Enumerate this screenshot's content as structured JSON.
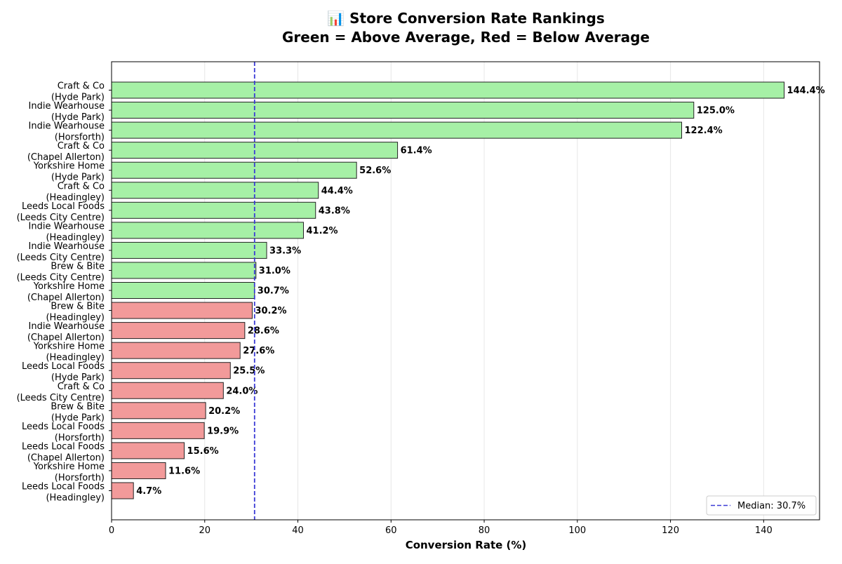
{
  "chart_data": {
    "type": "bar",
    "orientation": "horizontal",
    "title_line1": "📊 Store Conversion Rate Rankings",
    "title_line2": "Green = Above Average, Red = Below Average",
    "xlabel": "Conversion Rate (%)",
    "ylabel": "",
    "xlim": [
      0,
      152
    ],
    "xticks": [
      0,
      20,
      40,
      60,
      80,
      100,
      120,
      140
    ],
    "grid": "vertical",
    "legend_position": "bottom-right",
    "median": 30.7,
    "median_label": "Median: 30.7%",
    "colors": {
      "above": "#a6f0a6",
      "below": "#f29a9a",
      "edge": "#222222",
      "median_line": "#3a3ad6",
      "grid": "#e6e6e6"
    },
    "bars": [
      {
        "name": "Craft & Co",
        "area": "(Hyde Park)",
        "value": 144.4,
        "label": "144.4%",
        "group": "above"
      },
      {
        "name": "Indie Wearhouse",
        "area": "(Hyde Park)",
        "value": 125.0,
        "label": "125.0%",
        "group": "above"
      },
      {
        "name": "Indie Wearhouse",
        "area": "(Horsforth)",
        "value": 122.4,
        "label": "122.4%",
        "group": "above"
      },
      {
        "name": "Craft & Co",
        "area": "(Chapel Allerton)",
        "value": 61.4,
        "label": "61.4%",
        "group": "above"
      },
      {
        "name": "Yorkshire Home",
        "area": "(Hyde Park)",
        "value": 52.6,
        "label": "52.6%",
        "group": "above"
      },
      {
        "name": "Craft & Co",
        "area": "(Headingley)",
        "value": 44.4,
        "label": "44.4%",
        "group": "above"
      },
      {
        "name": "Leeds Local Foods",
        "area": "(Leeds City Centre)",
        "value": 43.8,
        "label": "43.8%",
        "group": "above"
      },
      {
        "name": "Indie Wearhouse",
        "area": "(Headingley)",
        "value": 41.2,
        "label": "41.2%",
        "group": "above"
      },
      {
        "name": "Indie Wearhouse",
        "area": "(Leeds City Centre)",
        "value": 33.3,
        "label": "33.3%",
        "group": "above"
      },
      {
        "name": "Brew & Bite",
        "area": "(Leeds City Centre)",
        "value": 31.0,
        "label": "31.0%",
        "group": "above"
      },
      {
        "name": "Yorkshire Home",
        "area": "(Chapel Allerton)",
        "value": 30.7,
        "label": "30.7%",
        "group": "above"
      },
      {
        "name": "Brew & Bite",
        "area": "(Headingley)",
        "value": 30.2,
        "label": "30.2%",
        "group": "below"
      },
      {
        "name": "Indie Wearhouse",
        "area": "(Chapel Allerton)",
        "value": 28.6,
        "label": "28.6%",
        "group": "below"
      },
      {
        "name": "Yorkshire Home",
        "area": "(Headingley)",
        "value": 27.6,
        "label": "27.6%",
        "group": "below"
      },
      {
        "name": "Leeds Local Foods",
        "area": "(Hyde Park)",
        "value": 25.5,
        "label": "25.5%",
        "group": "below"
      },
      {
        "name": "Craft & Co",
        "area": "(Leeds City Centre)",
        "value": 24.0,
        "label": "24.0%",
        "group": "below"
      },
      {
        "name": "Brew & Bite",
        "area": "(Hyde Park)",
        "value": 20.2,
        "label": "20.2%",
        "group": "below"
      },
      {
        "name": "Leeds Local Foods",
        "area": "(Horsforth)",
        "value": 19.9,
        "label": "19.9%",
        "group": "below"
      },
      {
        "name": "Leeds Local Foods",
        "area": "(Chapel Allerton)",
        "value": 15.6,
        "label": "15.6%",
        "group": "below"
      },
      {
        "name": "Yorkshire Home",
        "area": "(Horsforth)",
        "value": 11.6,
        "label": "11.6%",
        "group": "below"
      },
      {
        "name": "Leeds Local Foods",
        "area": "(Headingley)",
        "value": 4.7,
        "label": "4.7%",
        "group": "below"
      }
    ]
  }
}
